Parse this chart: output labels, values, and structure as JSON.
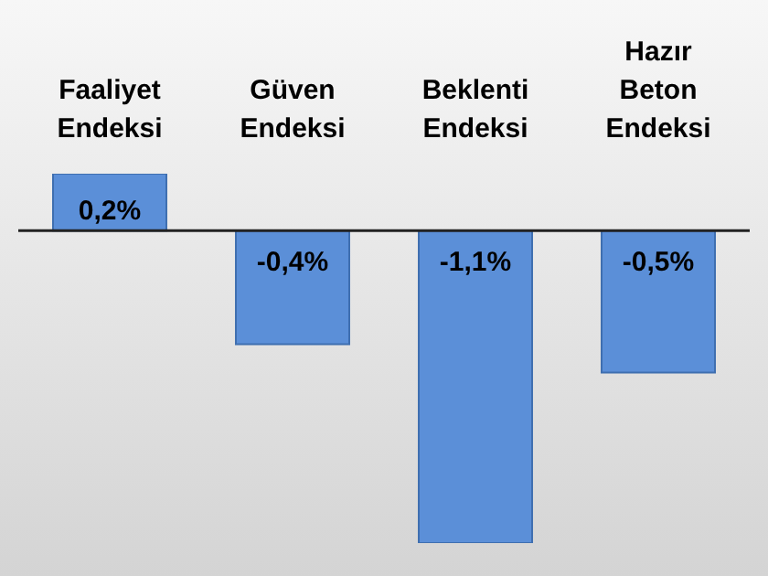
{
  "chart_data": {
    "type": "bar",
    "categories": [
      "Faaliyet Endeksi",
      "Güven Endeksi",
      "Beklenti Endeksi",
      "Hazır Beton Endeksi"
    ],
    "series": [
      {
        "color": "#5b8fd8",
        "values": [
          0.2,
          -0.4,
          -1.1,
          -0.5
        ],
        "value_labels": [
          "0,2%",
          "-0,4%",
          "-1,1%",
          "-0,5%"
        ]
      }
    ],
    "legend": false,
    "grid": false
  }
}
